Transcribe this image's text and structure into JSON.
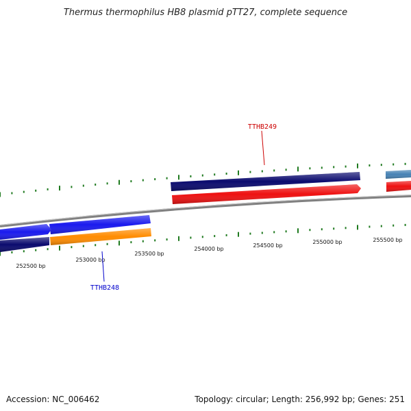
{
  "title": "Thermus thermophilus HB8 plasmid pTT27, complete sequence",
  "footer": {
    "accession": "Accession: NC_006462",
    "summary": "Topology: circular; Length: 256,992 bp; Genes: 251"
  },
  "colors": {
    "backbone": "#808080",
    "ticks": "#1f7a1f",
    "navy": "#0a0a6e",
    "blue": "#1a1aee",
    "red": "#ee1111",
    "orange": "#ff8c00",
    "steel": "#4682b4",
    "label_top": "#cc0000",
    "label_bottom": "#0000cc"
  },
  "tick_labels": [
    "252500 bp",
    "253000 bp",
    "253500 bp",
    "254000 bp",
    "254500 bp",
    "255000 bp",
    "255500 bp"
  ],
  "features": [
    {
      "name": "navy-left",
      "color": "navy"
    },
    {
      "name": "blue-left",
      "color": "blue"
    },
    {
      "name": "blue-mid",
      "color": "blue"
    },
    {
      "name": "orange-mid",
      "color": "orange"
    },
    {
      "name": "navy-top",
      "color": "navy"
    },
    {
      "name": "red-top",
      "color": "red"
    },
    {
      "name": "steel-right",
      "color": "steel"
    },
    {
      "name": "red-right",
      "color": "red"
    }
  ],
  "gene_labels": [
    {
      "text": "TTHB249",
      "color": "label_top"
    },
    {
      "text": "TTHB248",
      "color": "label_bottom"
    }
  ]
}
